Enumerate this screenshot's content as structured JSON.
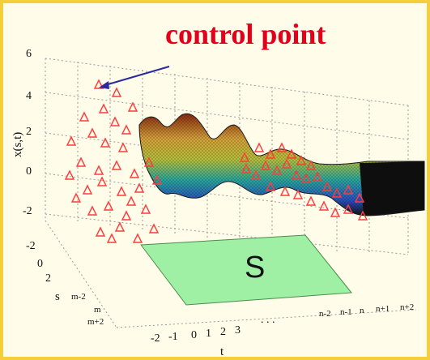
{
  "chart_data": {
    "type": "surface",
    "annotation": "control point",
    "plane_label": "S",
    "ylabel": "x(s,t)",
    "slabel": "s",
    "tlabel": "t",
    "z_ticks": [
      "6",
      "4",
      "2",
      "0",
      "-2"
    ],
    "s_ticks": [
      "-2",
      "0",
      "2",
      "m-2",
      "m",
      "m+2"
    ],
    "t_ticks": [
      "-2",
      "-1",
      "0",
      "1",
      "2",
      "3",
      ". . .",
      "n-2",
      "n-1",
      "n",
      "n+1",
      "n+2"
    ],
    "colors": {
      "marker": "#ff3b3b",
      "plane": "#9ff0a5",
      "arrow": "#2a2a9c",
      "annotation": "#e3001b"
    }
  }
}
